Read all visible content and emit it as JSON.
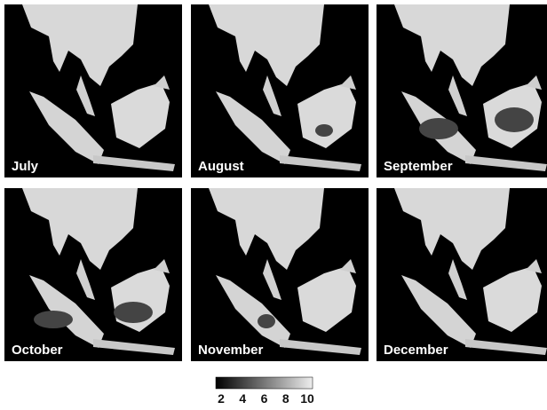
{
  "panels": [
    {
      "label": "July"
    },
    {
      "label": "August"
    },
    {
      "label": "September"
    },
    {
      "label": "October"
    },
    {
      "label": "November"
    },
    {
      "label": "December"
    }
  ],
  "colorbar": {
    "ticks": [
      2,
      4,
      6,
      8,
      10
    ]
  }
}
